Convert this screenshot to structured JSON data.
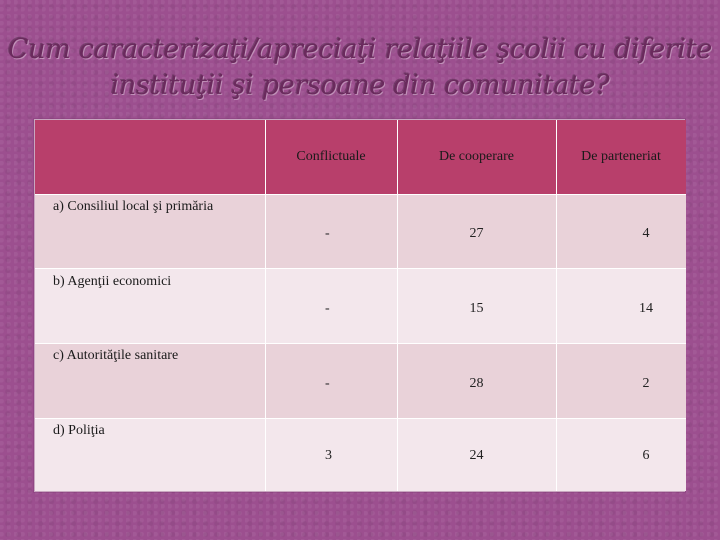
{
  "title": {
    "line1": "Cum caracterizaţi/apreciaţi relaţiile şcolii cu diferite",
    "line2": "instituţii şi persoane din comunitate?"
  },
  "table": {
    "columns": [
      "Conflictuale",
      "De cooperare",
      "De parteneriat"
    ],
    "rows": [
      {
        "label": "a) Consiliul local şi primăria",
        "values": [
          "-",
          "27",
          "4"
        ]
      },
      {
        "label": "b) Agenţii economici",
        "values": [
          "-",
          "15",
          "14"
        ]
      },
      {
        "label": "c) Autorităţile sanitare",
        "values": [
          "-",
          "28",
          "2"
        ]
      },
      {
        "label": "d) Poliţia",
        "values": [
          "3",
          "24",
          "6"
        ]
      }
    ]
  },
  "colors": {
    "background": "#9c4f8f",
    "header": "#b83f6b",
    "row_dark": "#e9d2d9",
    "row_light": "#f3e7ec"
  }
}
